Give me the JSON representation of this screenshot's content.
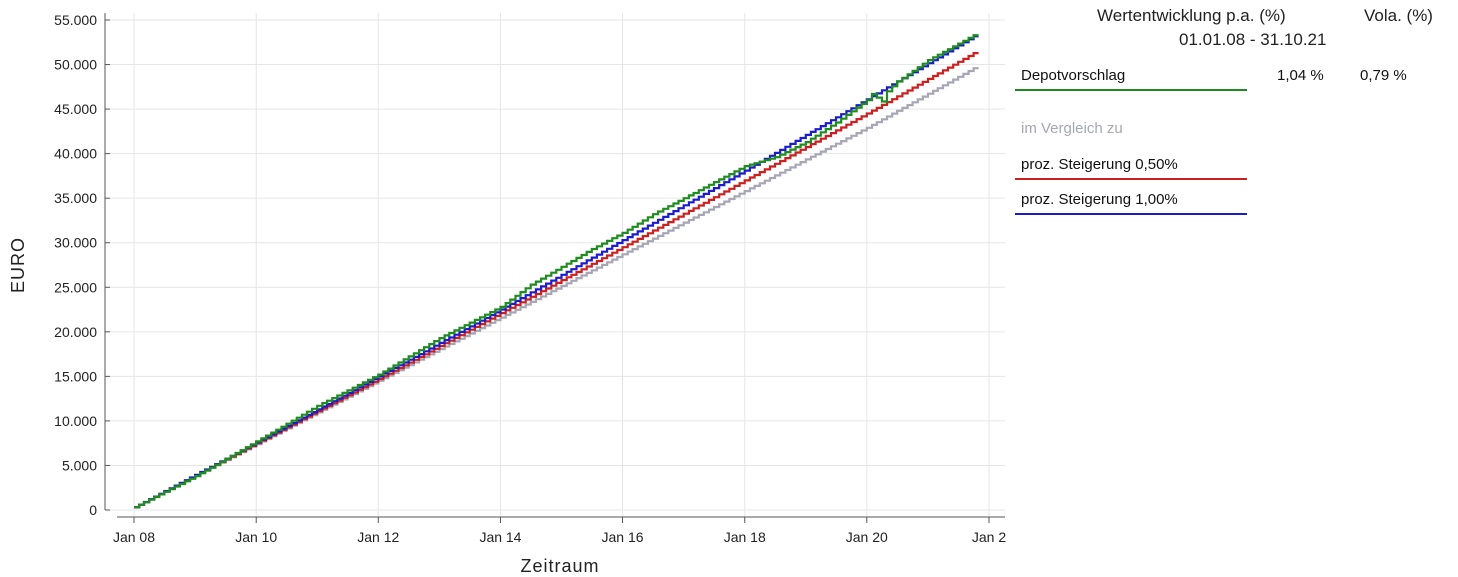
{
  "chart_data": {
    "type": "line",
    "title": "",
    "xlabel": "Zeitraum",
    "ylabel": "EURO",
    "x_range": [
      "2008-01-01",
      "2021-10-31"
    ],
    "ylim": [
      0,
      55000
    ],
    "grid": true,
    "legend_placement": "right",
    "x_ticks": [
      {
        "date": "2008-01-01",
        "label": "Jan 08"
      },
      {
        "date": "2010-01-01",
        "label": "Jan 10"
      },
      {
        "date": "2012-01-01",
        "label": "Jan 12"
      },
      {
        "date": "2014-01-01",
        "label": "Jan 14"
      },
      {
        "date": "2016-01-01",
        "label": "Jan 16"
      },
      {
        "date": "2018-01-01",
        "label": "Jan 18"
      },
      {
        "date": "2020-01-01",
        "label": "Jan 20"
      },
      {
        "date": "2022-01-01",
        "label": "Jan 2"
      }
    ],
    "y_ticks": [
      {
        "value": 0,
        "label": "0"
      },
      {
        "value": 5000,
        "label": "5.000"
      },
      {
        "value": 10000,
        "label": "10.000"
      },
      {
        "value": 15000,
        "label": "15.000"
      },
      {
        "value": 20000,
        "label": "20.000"
      },
      {
        "value": 25000,
        "label": "25.000"
      },
      {
        "value": 30000,
        "label": "30.000"
      },
      {
        "value": 35000,
        "label": "35.000"
      },
      {
        "value": 40000,
        "label": "40.000"
      },
      {
        "value": 45000,
        "label": "45.000"
      },
      {
        "value": 50000,
        "label": "50.000"
      },
      {
        "value": 55000,
        "label": "55.000"
      }
    ],
    "series": [
      {
        "key": "base",
        "color": "#a6a6b4",
        "x": [
          "2008-01-01",
          "2010-01-01",
          "2012-01-01",
          "2014-01-01",
          "2016-01-01",
          "2018-01-01",
          "2020-01-01",
          "2021-10-31"
        ],
        "y": [
          300,
          7400,
          14500,
          21600,
          28700,
          35800,
          42900,
          49900
        ]
      },
      {
        "key": "red",
        "name": "proz. Steigerung 0,50%",
        "color": "#cc1f1f",
        "x": [
          "2008-01-01",
          "2010-01-01",
          "2012-01-01",
          "2014-01-01",
          "2016-01-01",
          "2018-01-01",
          "2020-01-01",
          "2021-10-31"
        ],
        "y": [
          300,
          7500,
          14700,
          22100,
          29500,
          37000,
          44500,
          51600
        ]
      },
      {
        "key": "blue",
        "name": "proz. Steigerung 1,00%",
        "color": "#1c1ccc",
        "x": [
          "2008-01-01",
          "2010-01-01",
          "2012-01-01",
          "2014-01-01",
          "2016-01-01",
          "2018-01-01",
          "2020-01-01",
          "2021-10-31"
        ],
        "y": [
          300,
          7600,
          15000,
          22500,
          30300,
          38100,
          46100,
          53500
        ]
      },
      {
        "key": "green",
        "name": "Depotvorschlag",
        "color": "#1e8c1e",
        "x": [
          "2008-01-01",
          "2009-01-01",
          "2010-01-01",
          "2011-01-01",
          "2012-01-01",
          "2013-01-01",
          "2014-01-01",
          "2014-07-01",
          "2015-01-01",
          "2015-07-01",
          "2016-01-01",
          "2016-07-01",
          "2017-01-01",
          "2017-07-01",
          "2018-01-01",
          "2018-07-01",
          "2019-01-01",
          "2019-07-01",
          "2020-01-01",
          "2020-02-15",
          "2020-03-20",
          "2020-05-01",
          "2020-07-01",
          "2021-01-01",
          "2021-10-31"
        ],
        "y": [
          300,
          3800,
          7700,
          11700,
          15200,
          19300,
          22800,
          25300,
          27300,
          29300,
          31100,
          33200,
          35000,
          36800,
          38600,
          39600,
          41300,
          43500,
          46000,
          47000,
          45400,
          47000,
          48100,
          50500,
          53600
        ]
      }
    ]
  },
  "legend": {
    "header_perf": "Wertentwicklung p.a. (%)",
    "header_vola": "Vola. (%)",
    "header_period": "01.01.08 - 31.10.21",
    "main": {
      "label": "Depotvorschlag",
      "perf": "1,04 %",
      "vola": "0,79 %"
    },
    "compare_label": "im Vergleich zu",
    "compare": [
      {
        "label": "proz. Steigerung 0,50%"
      },
      {
        "label": "proz. Steigerung 1,00%"
      }
    ]
  }
}
